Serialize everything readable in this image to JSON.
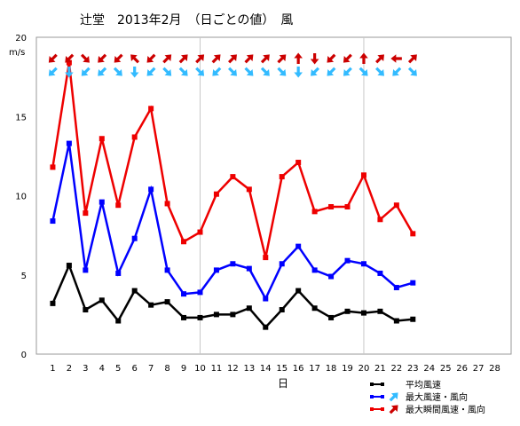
{
  "chart_data": {
    "type": "line",
    "title": "辻堂　2013年2月　（日ごとの値）　風",
    "ylabel": "m/s",
    "xlabel": "日",
    "x_ticks": [
      1,
      2,
      3,
      4,
      5,
      6,
      7,
      8,
      9,
      10,
      11,
      12,
      13,
      14,
      15,
      16,
      17,
      18,
      19,
      20,
      21,
      22,
      23,
      24,
      25,
      26,
      27,
      28
    ],
    "y_ticks": [
      0,
      5,
      10,
      15,
      20
    ],
    "xlim": [
      0,
      29
    ],
    "ylim": [
      0,
      20
    ],
    "grid": "vertical-every-10-days",
    "legend_position": "bottom-right",
    "series": [
      {
        "name": "平均風速",
        "color": "#000000",
        "values": [
          3.2,
          5.6,
          2.8,
          3.4,
          2.1,
          4.0,
          3.1,
          3.3,
          2.3,
          2.3,
          2.5,
          2.5,
          2.9,
          1.7,
          2.8,
          4.0,
          2.9,
          2.3,
          2.7,
          2.6,
          2.7,
          2.1,
          2.2
        ]
      },
      {
        "name": "最大風速・風向",
        "color": "#0000ff",
        "arrow_color": "#33bbff",
        "values": [
          8.4,
          13.3,
          5.3,
          9.6,
          5.1,
          7.3,
          10.4,
          5.3,
          3.8,
          3.9,
          5.3,
          5.7,
          5.4,
          3.5,
          5.7,
          6.8,
          5.3,
          4.9,
          5.9,
          5.7,
          5.1,
          4.2,
          4.5
        ],
        "direction_deg": [
          45,
          0,
          45,
          45,
          315,
          0,
          45,
          315,
          315,
          315,
          45,
          315,
          315,
          315,
          315,
          0,
          45,
          45,
          45,
          315,
          315,
          45,
          315
        ]
      },
      {
        "name": "最大瞬間風速・風向",
        "color": "#ee0000",
        "arrow_color": "#cc0000",
        "values": [
          11.8,
          18.4,
          8.9,
          13.6,
          9.4,
          13.7,
          15.5,
          9.5,
          7.1,
          7.7,
          10.1,
          11.2,
          10.4,
          6.1,
          11.2,
          12.1,
          9.0,
          9.3,
          9.3,
          11.3,
          8.5,
          9.4,
          7.6
        ],
        "direction_deg": [
          45,
          45,
          315,
          45,
          45,
          135,
          45,
          225,
          225,
          225,
          225,
          225,
          225,
          225,
          225,
          180,
          0,
          45,
          45,
          180,
          225,
          90,
          225
        ]
      }
    ]
  }
}
